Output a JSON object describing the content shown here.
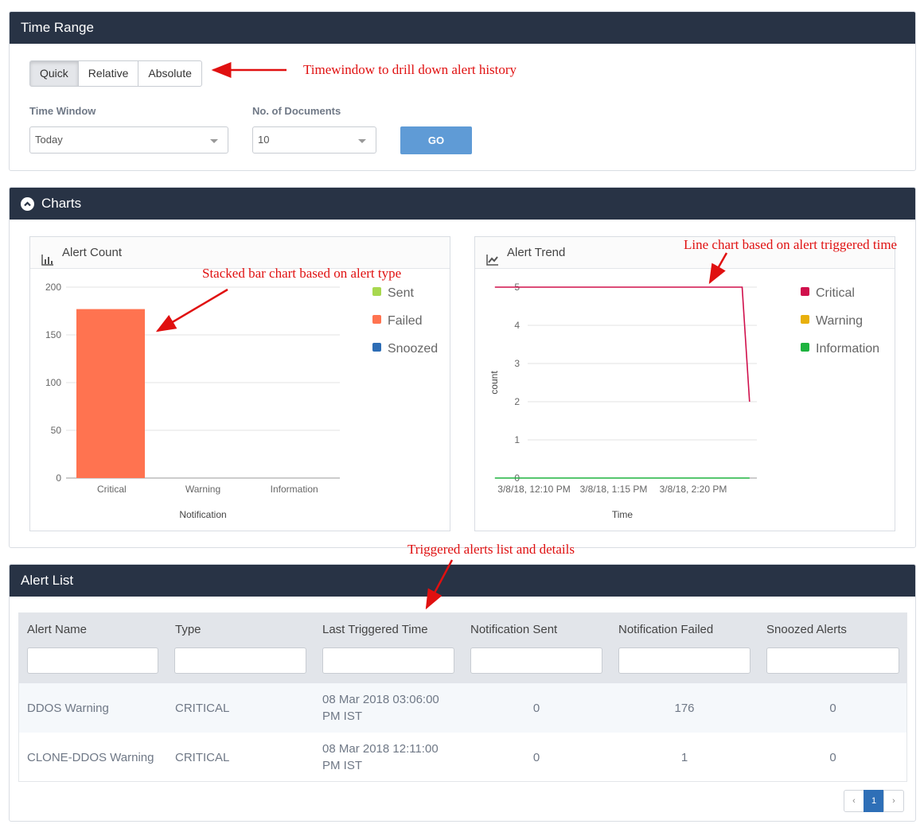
{
  "time_range": {
    "title": "Time Range",
    "tabs": [
      "Quick",
      "Relative",
      "Absolute"
    ],
    "time_window_label": "Time Window",
    "time_window_value": "Today",
    "docs_label": "No. of Documents",
    "docs_value": "10",
    "go_label": "GO"
  },
  "annotations": {
    "timewindow": "Timewindow to drill down alert history",
    "stacked": "Stacked bar chart based on alert type",
    "line": "Line chart based on alert triggered time",
    "list": "Triggered alerts list and details"
  },
  "charts_panel": {
    "title": "Charts"
  },
  "chart_data": [
    {
      "type": "bar",
      "title": "Alert Count",
      "categories": [
        "Critical",
        "Warning",
        "Information"
      ],
      "series": [
        {
          "name": "Sent",
          "values": [
            0,
            0,
            0
          ],
          "color": "#a8d84f"
        },
        {
          "name": "Failed",
          "values": [
            177,
            0,
            0
          ],
          "color": "#ff7350"
        },
        {
          "name": "Snoozed",
          "values": [
            0,
            0,
            0
          ],
          "color": "#2d6db5"
        }
      ],
      "xlabel": "Notification",
      "ylabel": "",
      "ylim": [
        0,
        200
      ],
      "yticks": [
        0,
        50,
        100,
        150,
        200
      ],
      "stacked": true,
      "legend": "right"
    },
    {
      "type": "line",
      "title": "Alert Trend",
      "xticks": [
        "3/8/18, 12:10 PM",
        "3/8/18, 1:15 PM",
        "3/8/18, 2:20 PM"
      ],
      "series": [
        {
          "name": "Critical",
          "color": "#d0104c",
          "points": [
            [
              "3/8/18, 11:38 AM",
              5
            ],
            [
              "3/8/18, 3:00 PM",
              5
            ],
            [
              "3/8/18, 3:06 PM",
              2
            ]
          ]
        },
        {
          "name": "Warning",
          "color": "#e8b00c",
          "points": []
        },
        {
          "name": "Information",
          "color": "#1eb33f",
          "points": [
            [
              "3/8/18, 11:38 AM",
              0
            ],
            [
              "3/8/18, 3:06 PM",
              0
            ]
          ]
        }
      ],
      "xlabel": "Time",
      "ylabel": "count",
      "ylim": [
        0,
        5
      ],
      "yticks": [
        0,
        1,
        2,
        3,
        4,
        5
      ],
      "legend": "right"
    }
  ],
  "alert_list": {
    "title": "Alert List",
    "columns": [
      "Alert Name",
      "Type",
      "Last Triggered Time",
      "Notification Sent",
      "Notification Failed",
      "Snoozed Alerts"
    ],
    "rows": [
      {
        "name": "DDOS Warning",
        "type": "CRITICAL",
        "time_line1": "08 Mar 2018 03:06:00",
        "time_line2": "PM IST",
        "sent": "0",
        "failed": "176",
        "snoozed": "0"
      },
      {
        "name": "CLONE-DDOS Warning",
        "type": "CRITICAL",
        "time_line1": "08 Mar 2018 12:11:00",
        "time_line2": "PM IST",
        "sent": "0",
        "failed": "1",
        "snoozed": "0"
      }
    ],
    "pager": {
      "prev": "‹",
      "current": "1",
      "next": "›"
    }
  },
  "icons": [
    "chevron-up-icon",
    "bar-chart-icon",
    "line-chart-icon",
    "caret-down-icon"
  ]
}
